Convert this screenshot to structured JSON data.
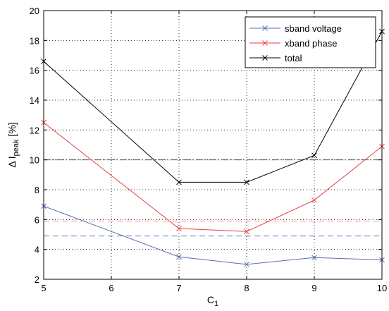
{
  "chart_data": {
    "type": "line",
    "x": [
      5,
      7,
      8,
      9,
      10
    ],
    "series": [
      {
        "name": "sband voltage",
        "color": "#5a6bb5",
        "values": [
          6.9,
          3.5,
          3.0,
          3.45,
          3.3
        ]
      },
      {
        "name": "xband phase",
        "color": "#e8403e",
        "values": [
          12.5,
          5.4,
          5.2,
          7.3,
          10.9
        ]
      },
      {
        "name": "total",
        "color": "#000000",
        "values": [
          16.6,
          8.5,
          8.5,
          10.3,
          18.6
        ]
      }
    ],
    "reference_lines": [
      {
        "y": 10.0,
        "color": "#555555",
        "style": "dash-dot"
      },
      {
        "y": 5.9,
        "color": "#ff9090",
        "style": "dashed"
      },
      {
        "y": 4.9,
        "color": "#6677cc",
        "style": "dashed"
      }
    ],
    "xlabel_main": "C",
    "xlabel_sub": "1",
    "ylabel_main": "Δ I",
    "ylabel_sub": "peak",
    "ylabel_unit": " [%]",
    "xlim": [
      5,
      10
    ],
    "ylim": [
      2,
      20
    ],
    "xticks": [
      5,
      6,
      7,
      8,
      9,
      10
    ],
    "yticks": [
      2,
      4,
      6,
      8,
      10,
      12,
      14,
      16,
      18,
      20
    ],
    "grid": true,
    "legend_position": "top-right"
  }
}
